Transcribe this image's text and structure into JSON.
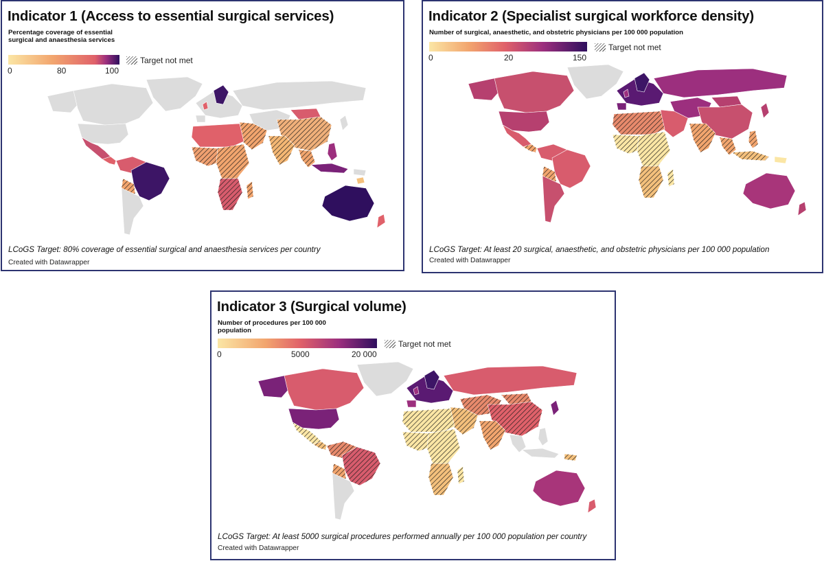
{
  "colors": {
    "land": "#dcdcdc",
    "border": "#2c3370",
    "low": "#fbe6a5",
    "mid": "#e0616a",
    "high": "#2f0f5e"
  },
  "panels": [
    {
      "title": "Indicator 1 (Access to essential surgical services)",
      "legend_title": "Percentage coverage of essential surgical and anaesthesia services",
      "ticks": [
        "0",
        "80",
        "100"
      ],
      "hatch_label": "Target not met",
      "note": "LCoGS Target: 80% coverage of essential surgical and anaesthesia services per country",
      "credit": "Created with Datawrapper"
    },
    {
      "title": "Indicator 2 (Specialist surgical workforce density)",
      "legend_title": "Number of surgical, anaesthetic, and obstetric physicians per 100 000 population",
      "ticks": [
        "0",
        "20",
        "150"
      ],
      "hatch_label": "Target not met",
      "note": "LCoGS Target: At least 20 surgical, anaesthetic, and obstetric physicians per 100 000 population",
      "credit": "Created with Datawrapper"
    },
    {
      "title": "Indicator 3 (Surgical volume)",
      "legend_title": "Number of procedures per 100 000 population",
      "ticks": [
        "0",
        "5000",
        "20 000"
      ],
      "hatch_label": "Target not met",
      "note": "LCoGS Target: At least 5000 surgical procedures performed annually per 100 000 population per country",
      "credit": "Created with Datawrapper"
    }
  ]
}
